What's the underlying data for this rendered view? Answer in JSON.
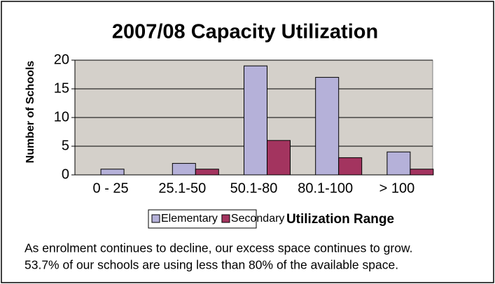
{
  "chart_data": {
    "type": "bar",
    "title": "2007/08 Capacity Utilization",
    "x_label": "Utilization Range",
    "y_label": "Number of Schools",
    "categories": [
      "0 - 25",
      "25.1-50",
      "50.1-80",
      "80.1-100",
      "> 100"
    ],
    "series": [
      {
        "name": "Elementary",
        "color": "#b5b1d9",
        "values": [
          1,
          2,
          19,
          17,
          4
        ]
      },
      {
        "name": "Secondary",
        "color": "#a3345f",
        "values": [
          0,
          1,
          6,
          3,
          1
        ]
      }
    ],
    "ylim": [
      0,
      20
    ],
    "yticks": [
      0,
      5,
      10,
      15,
      20
    ],
    "grid": true,
    "annotations": [
      "As enrolment continues to decline, our excess space continues to grow.",
      "53.7% of our schools are using less than 80% of the available space."
    ]
  }
}
